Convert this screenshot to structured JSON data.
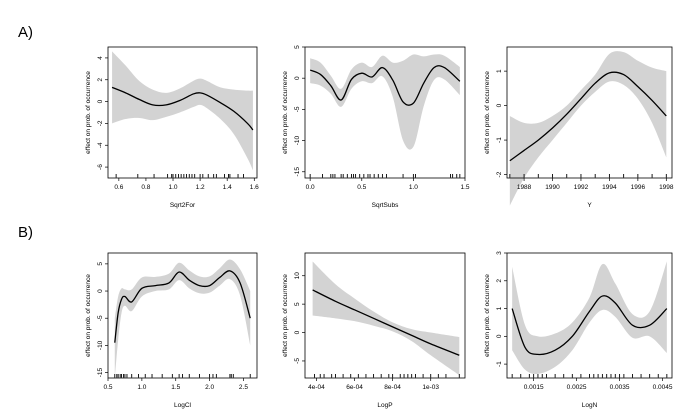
{
  "row_labels": [
    "A)",
    "B)"
  ],
  "chart_data": [
    {
      "type": "line",
      "panel": "A1",
      "xlabel": "Sqrt2For",
      "ylabel": "effect on prob. of occurrence",
      "xlim": [
        0.52,
        1.62
      ],
      "ylim": [
        -7,
        5
      ],
      "xticks": [
        0.6,
        0.8,
        1.0,
        1.2,
        1.4,
        1.6
      ],
      "xtick_labels": [
        "0.6",
        "0.8",
        "1.0",
        "1.2",
        "1.4",
        "1.6"
      ],
      "yticks": [
        -6,
        -4,
        -2,
        0,
        2,
        4
      ],
      "ytick_labels": [
        "-6",
        "-4",
        "-2",
        "0",
        "2",
        "4"
      ],
      "x": [
        0.55,
        0.65,
        0.75,
        0.85,
        0.95,
        1.05,
        1.15,
        1.2,
        1.25,
        1.35,
        1.45,
        1.55,
        1.59
      ],
      "fit": [
        1.3,
        0.8,
        0.2,
        -0.3,
        -0.3,
        0.1,
        0.7,
        0.8,
        0.6,
        -0.1,
        -0.9,
        -2.0,
        -2.6
      ],
      "lower": [
        -2.0,
        -1.6,
        -1.5,
        -1.7,
        -1.4,
        -1.0,
        -0.5,
        -0.3,
        -0.6,
        -1.6,
        -3.0,
        -5.2,
        -6.3
      ],
      "upper": [
        4.6,
        3.3,
        1.9,
        1.1,
        0.8,
        1.2,
        1.9,
        2.1,
        1.9,
        1.3,
        1.1,
        1.0,
        1.0
      ],
      "rug": [
        0.58,
        0.74,
        0.86,
        0.96,
        0.99,
        1.0,
        1.02,
        1.04,
        1.06,
        1.08,
        1.1,
        1.12,
        1.14,
        1.16,
        1.2,
        1.22,
        1.26,
        1.3,
        1.32,
        1.38,
        1.41,
        1.42,
        1.48,
        1.52
      ]
    },
    {
      "type": "line",
      "panel": "A2",
      "xlabel": "SqrtSubs",
      "ylabel": "effect on prob. of occurrence",
      "xlim": [
        -0.05,
        1.5
      ],
      "ylim": [
        -16,
        5
      ],
      "xticks": [
        0.0,
        0.5,
        1.0,
        1.5
      ],
      "xtick_labels": [
        "0.0",
        "0.5",
        "1.0",
        "1.5"
      ],
      "yticks": [
        -15,
        -10,
        -5,
        0,
        5
      ],
      "ytick_labels": [
        "-15",
        "-10",
        "-5",
        "0",
        "5"
      ],
      "x": [
        0.0,
        0.1,
        0.2,
        0.3,
        0.4,
        0.5,
        0.6,
        0.7,
        0.8,
        0.9,
        1.0,
        1.1,
        1.2,
        1.3,
        1.45
      ],
      "fit": [
        1.3,
        0.6,
        -1.2,
        -3.5,
        -0.2,
        0.8,
        0.2,
        1.7,
        -0.3,
        -3.8,
        -4.0,
        -0.8,
        1.7,
        1.7,
        -0.5
      ],
      "lower": [
        -0.8,
        -1.2,
        -2.5,
        -4.6,
        -1.7,
        -0.5,
        -0.8,
        0.3,
        -3.0,
        -10.0,
        -11.0,
        -4.5,
        -0.3,
        -0.2,
        -2.7
      ],
      "upper": [
        3.2,
        2.5,
        0.4,
        -1.7,
        1.4,
        2.5,
        1.8,
        3.6,
        2.5,
        2.8,
        3.8,
        3.5,
        3.8,
        3.6,
        1.8
      ],
      "rug": [
        0.0,
        0.12,
        0.2,
        0.22,
        0.24,
        0.3,
        0.32,
        0.36,
        0.4,
        0.42,
        0.44,
        0.48,
        0.52,
        0.56,
        0.58,
        0.62,
        0.66,
        0.7,
        0.74,
        0.9,
        1.0,
        1.02,
        1.36,
        1.38,
        1.42,
        1.45
      ]
    },
    {
      "type": "line",
      "panel": "A3",
      "xlabel": "Y",
      "ylabel": "effect on prob. of occurrence",
      "xlim": [
        1986.8,
        1998.4
      ],
      "ylim": [
        -2.1,
        1.7
      ],
      "xticks": [
        1988,
        1990,
        1992,
        1994,
        1996,
        1998
      ],
      "xtick_labels": [
        "1988",
        "1990",
        "1992",
        "1994",
        "1996",
        "1998"
      ],
      "yticks": [
        -2,
        -1,
        0,
        1
      ],
      "ytick_labels": [
        "-2",
        "-1",
        "0",
        "1"
      ],
      "x": [
        1987,
        1988,
        1989,
        1990,
        1991,
        1992,
        1993,
        1994,
        1995,
        1996,
        1997,
        1998
      ],
      "fit": [
        -1.6,
        -1.3,
        -1.0,
        -0.65,
        -0.25,
        0.2,
        0.65,
        0.95,
        0.9,
        0.55,
        0.15,
        -0.3
      ],
      "lower": [
        -2.9,
        -2.1,
        -1.5,
        -1.0,
        -0.5,
        0.0,
        0.4,
        0.7,
        0.6,
        0.2,
        -0.5,
        -1.5
      ],
      "upper": [
        -0.3,
        -0.5,
        -0.5,
        -0.3,
        0.0,
        0.45,
        0.9,
        1.5,
        1.55,
        1.3,
        1.1,
        1.0
      ],
      "rug": [
        1987,
        1988,
        1989,
        1990,
        1991,
        1992,
        1993,
        1994,
        1995,
        1996,
        1997,
        1998
      ]
    },
    {
      "type": "line",
      "panel": "B1",
      "xlabel": "LogCl",
      "ylabel": "effect on prob. of occurrence",
      "xlim": [
        0.5,
        2.7
      ],
      "ylim": [
        -16,
        7
      ],
      "xticks": [
        0.5,
        1.0,
        1.5,
        2.0,
        2.5
      ],
      "xtick_labels": [
        "0.5",
        "1.0",
        "1.5",
        "2.0",
        "2.5"
      ],
      "yticks": [
        -15,
        -10,
        -5,
        0,
        5
      ],
      "ytick_labels": [
        "-15",
        "-10",
        "-5",
        "0",
        "5"
      ],
      "x": [
        0.6,
        0.65,
        0.7,
        0.75,
        0.85,
        1.0,
        1.2,
        1.4,
        1.55,
        1.7,
        1.85,
        2.0,
        2.15,
        2.3,
        2.45,
        2.6
      ],
      "fit": [
        -9.5,
        -4.0,
        -1.5,
        -1.0,
        -2.0,
        0.5,
        1.0,
        1.5,
        3.5,
        2.0,
        1.0,
        1.0,
        2.5,
        3.7,
        1.5,
        -5.0
      ],
      "lower": [
        -16.0,
        -9.0,
        -4.0,
        -2.7,
        -3.7,
        -1.0,
        0.0,
        0.3,
        2.0,
        0.5,
        -0.4,
        -0.3,
        1.0,
        2.2,
        -0.8,
        -10.0
      ],
      "upper": [
        -5.0,
        -1.0,
        0.5,
        0.3,
        0.3,
        2.5,
        2.6,
        3.2,
        5.2,
        3.8,
        2.7,
        2.7,
        4.2,
        5.8,
        4.0,
        0.0
      ],
      "rug": [
        0.6,
        0.63,
        0.65,
        0.68,
        0.7,
        0.73,
        0.75,
        0.78,
        0.85,
        0.95,
        1.05,
        1.15,
        1.3,
        1.45,
        1.55,
        1.6,
        1.7,
        1.85,
        2.0,
        2.05,
        2.1,
        2.3,
        2.32,
        2.35,
        2.6
      ]
    },
    {
      "type": "line",
      "panel": "B2",
      "xlabel": "LogP",
      "ylabel": "effect on prob. of occurrence",
      "xlim": [
        0.00034,
        0.00118
      ],
      "ylim": [
        -8,
        14
      ],
      "xticks": [
        0.0004,
        0.0006,
        0.0008,
        0.001
      ],
      "xtick_labels": [
        "4e-04",
        "6e-04",
        "8e-04",
        "1e-03"
      ],
      "yticks": [
        -5,
        0,
        5,
        10
      ],
      "ytick_labels": [
        "-5",
        "0",
        "5",
        "10"
      ],
      "x": [
        0.00038,
        0.0005,
        0.0006,
        0.0007,
        0.0008,
        0.0009,
        0.001,
        0.00115
      ],
      "fit": [
        7.5,
        5.5,
        4.0,
        2.5,
        1.0,
        -0.5,
        -2.0,
        -4.0
      ],
      "lower": [
        3.0,
        2.5,
        2.0,
        1.2,
        0.2,
        -1.5,
        -4.0,
        -7.5
      ],
      "upper": [
        12.5,
        8.5,
        6.0,
        3.7,
        1.8,
        0.6,
        0.0,
        -0.8
      ],
      "rug": [
        0.00039,
        0.00042,
        0.00044,
        0.00048,
        0.0005,
        0.00054,
        0.00058,
        0.00062,
        0.00066,
        0.0007,
        0.00074,
        0.00078,
        0.0008,
        0.00084,
        0.00086,
        0.00088,
        0.0009,
        0.00092,
        0.00096,
        0.001,
        0.00104,
        0.00108,
        0.00115
      ]
    },
    {
      "type": "line",
      "panel": "B3",
      "xlabel": "LogN",
      "ylabel": "effect on prob. of occurrence",
      "xlim": [
        0.00088,
        0.00472
      ],
      "ylim": [
        -1.5,
        3.0
      ],
      "xticks": [
        0.0015,
        0.0025,
        0.0035,
        0.0045
      ],
      "xtick_labels": [
        "0.0015",
        "0.0025",
        "0.0035",
        "0.0045"
      ],
      "yticks": [
        -1,
        0,
        1,
        2,
        3
      ],
      "ytick_labels": [
        "-1",
        "0",
        "1",
        "2",
        "3"
      ],
      "x": [
        0.001,
        0.0013,
        0.0016,
        0.002,
        0.0024,
        0.0028,
        0.0031,
        0.0034,
        0.0038,
        0.0042,
        0.0046
      ],
      "fit": [
        1.0,
        -0.4,
        -0.65,
        -0.5,
        0.0,
        0.9,
        1.45,
        1.2,
        0.4,
        0.4,
        1.0
      ],
      "lower": [
        -0.5,
        -1.2,
        -1.35,
        -1.1,
        -0.5,
        0.5,
        0.95,
        0.7,
        -0.05,
        0.0,
        -0.6
      ],
      "upper": [
        2.5,
        0.4,
        0.0,
        0.1,
        0.5,
        1.4,
        2.6,
        1.9,
        0.8,
        0.9,
        2.7
      ],
      "rug": [
        0.001,
        0.0012,
        0.0014,
        0.0015,
        0.0016,
        0.0017,
        0.0018,
        0.002,
        0.0022,
        0.0024,
        0.0026,
        0.0028,
        0.0029,
        0.003,
        0.0031,
        0.0032,
        0.0033,
        0.0034,
        0.0035,
        0.0036,
        0.0038,
        0.004,
        0.0042,
        0.0044,
        0.0046
      ]
    }
  ]
}
